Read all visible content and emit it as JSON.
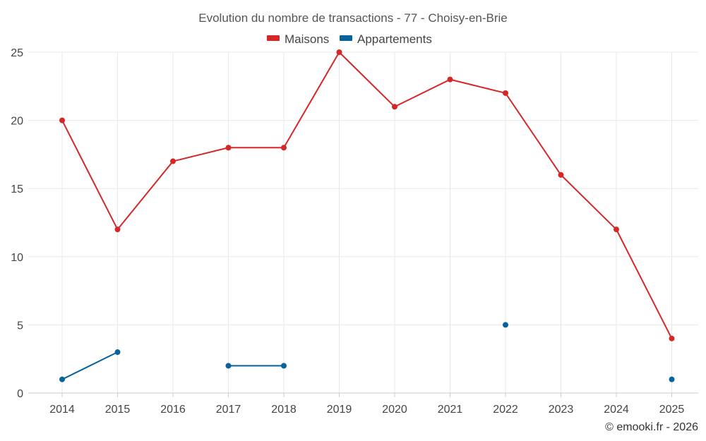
{
  "chart_data": {
    "type": "line",
    "title": "Evolution du nombre de transactions - 77 - Choisy-en-Brie",
    "x": [
      "2014",
      "2015",
      "2016",
      "2017",
      "2018",
      "2019",
      "2020",
      "2021",
      "2022",
      "2023",
      "2024",
      "2025"
    ],
    "series": [
      {
        "name": "Maisons",
        "color": "#d62728",
        "values": [
          20,
          12,
          17,
          18,
          18,
          25,
          21,
          23,
          22,
          16,
          12,
          4
        ]
      },
      {
        "name": "Appartements",
        "color": "#08629b",
        "values": [
          1,
          3,
          null,
          2,
          2,
          null,
          null,
          null,
          5,
          null,
          null,
          1
        ]
      }
    ],
    "ylim": [
      0,
      25
    ],
    "yticks": [
      0,
      5,
      10,
      15,
      20,
      25
    ],
    "grid": true,
    "legend_position": "top-center"
  },
  "credit": "© emooki.fr - 2026"
}
